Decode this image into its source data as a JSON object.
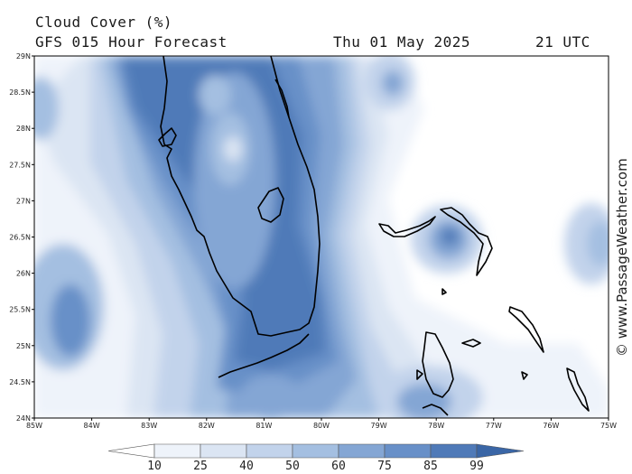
{
  "header": {
    "title": "Cloud Cover (%)",
    "subtitle": "GFS 015 Hour Forecast",
    "date": "Thu 01 May 2025",
    "time": "21 UTC"
  },
  "map": {
    "lat_labels": [
      "29N",
      "28.5N",
      "28N",
      "27.5N",
      "27N",
      "26.5N",
      "26N",
      "25.5N",
      "25N",
      "24.5N",
      "24N"
    ],
    "lon_labels": [
      "85W",
      "84W",
      "83W",
      "82W",
      "81W",
      "80W",
      "79W",
      "78W",
      "77W",
      "76W",
      "75W"
    ],
    "lat_range": [
      24,
      29
    ],
    "lon_range": [
      -85,
      -75
    ]
  },
  "colorbar": {
    "levels": [
      "10",
      "25",
      "40",
      "50",
      "60",
      "75",
      "85",
      "99"
    ],
    "colors": [
      "#ffffff",
      "#eef3fa",
      "#dbe5f3",
      "#c2d3eb",
      "#a4bfe1",
      "#84a6d4",
      "#6890c8",
      "#4f7ab8",
      "#3a66a6"
    ]
  },
  "watermark": "© www.PassageWeather.com"
}
